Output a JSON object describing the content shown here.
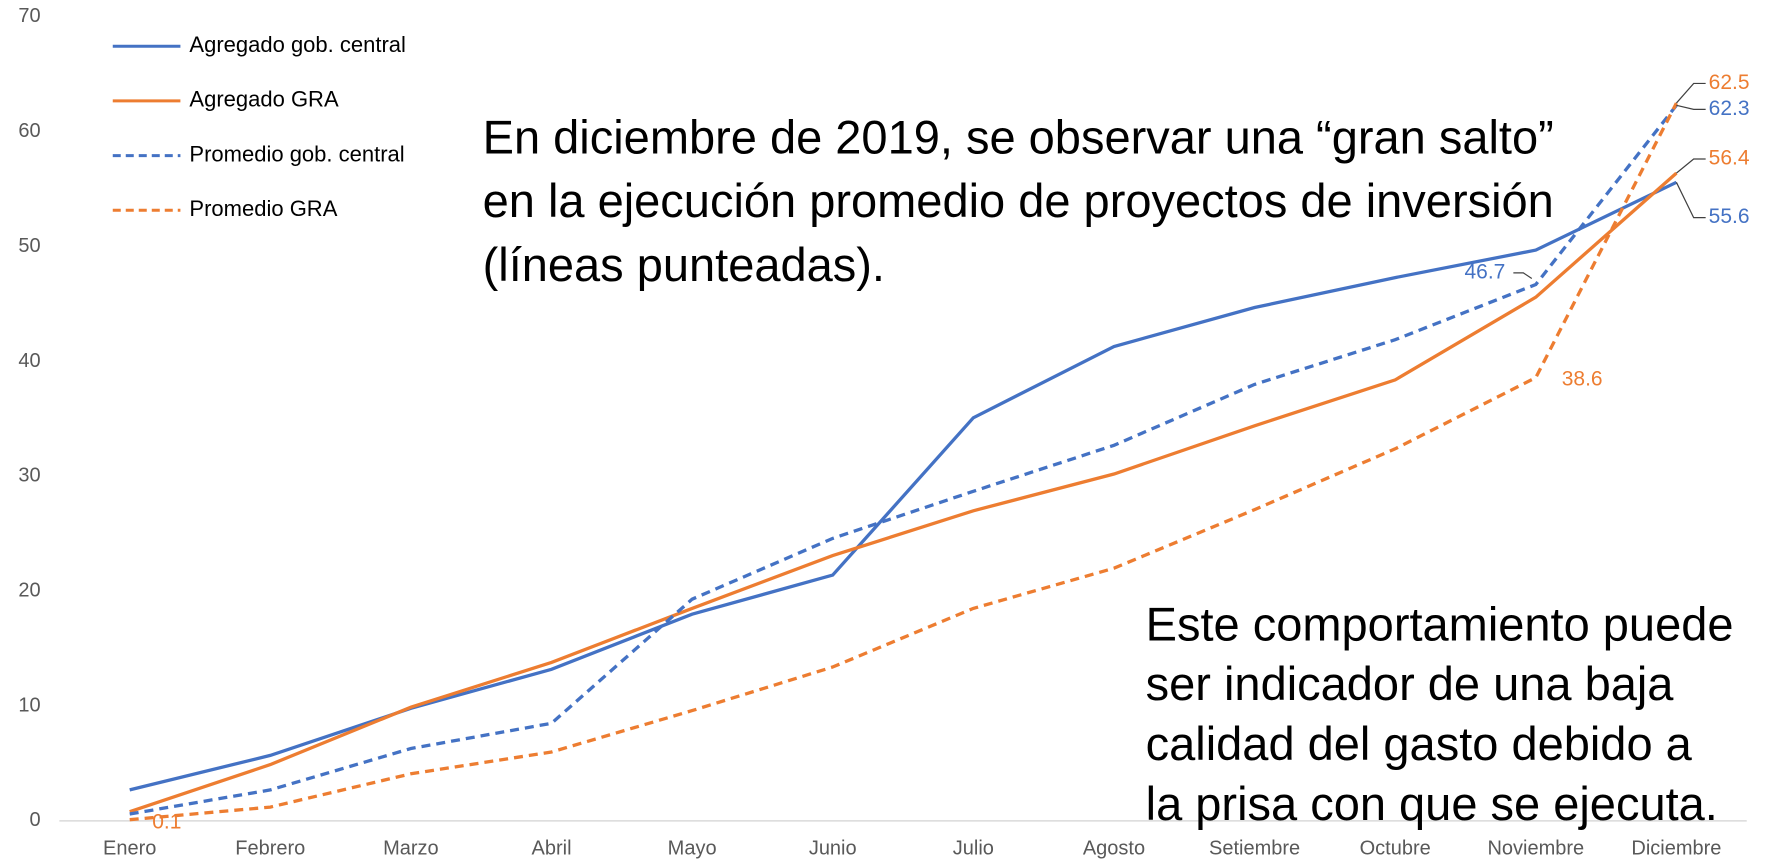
{
  "chart_data": {
    "type": "line",
    "categories": [
      "Enero",
      "Febrero",
      "Marzo",
      "Abril",
      "Mayo",
      "Junio",
      "Julio",
      "Agosto",
      "Setiembre",
      "Octubre",
      "Noviembre",
      "Diciembre"
    ],
    "ylim": [
      0,
      70
    ],
    "yticks": [
      0,
      10,
      20,
      30,
      40,
      50,
      60,
      70
    ],
    "legend": "top-left",
    "series": [
      {
        "name": "Agregado gob. central",
        "color": "#4472c4",
        "dash": false,
        "values": [
          2.7,
          5.7,
          9.8,
          13.2,
          18.0,
          21.4,
          35.1,
          41.3,
          44.7,
          47.3,
          49.7,
          55.6
        ],
        "value_labels": [
          null,
          null,
          null,
          null,
          null,
          null,
          null,
          null,
          null,
          null,
          null,
          "55.6"
        ]
      },
      {
        "name": "Agregado GRA",
        "color": "#ed7d31",
        "dash": false,
        "values": [
          0.8,
          4.9,
          9.9,
          13.8,
          18.5,
          23.1,
          27.0,
          30.2,
          34.4,
          38.4,
          45.6,
          56.4
        ],
        "value_labels": [
          null,
          null,
          null,
          null,
          null,
          null,
          null,
          null,
          null,
          null,
          null,
          "56.4"
        ]
      },
      {
        "name": "Promedio gob. central",
        "color": "#4472c4",
        "dash": true,
        "values": [
          0.6,
          2.7,
          6.3,
          8.5,
          19.3,
          24.6,
          28.7,
          32.7,
          38.0,
          41.9,
          46.7,
          62.3
        ],
        "value_labels": [
          null,
          null,
          null,
          null,
          null,
          null,
          null,
          null,
          null,
          null,
          "46.7",
          "62.3"
        ]
      },
      {
        "name": "Promedio GRA",
        "color": "#ed7d31",
        "dash": true,
        "values": [
          0.1,
          1.2,
          4.1,
          6.0,
          9.6,
          13.4,
          18.5,
          22.0,
          27.1,
          32.4,
          38.6,
          62.5
        ],
        "value_labels": [
          "0.1",
          null,
          null,
          null,
          null,
          null,
          null,
          null,
          null,
          null,
          "38.6",
          "62.5"
        ]
      }
    ],
    "annotations": [
      [
        "En diciembre de 2019, se observar una “gran salto”",
        "en la ejecución promedio de proyectos de inversión",
        "(líneas punteadas)."
      ],
      [
        "Este comportamiento puede",
        "ser indicador de una baja",
        "calidad del gasto debido a",
        "la prisa con que se ejecuta."
      ]
    ]
  }
}
